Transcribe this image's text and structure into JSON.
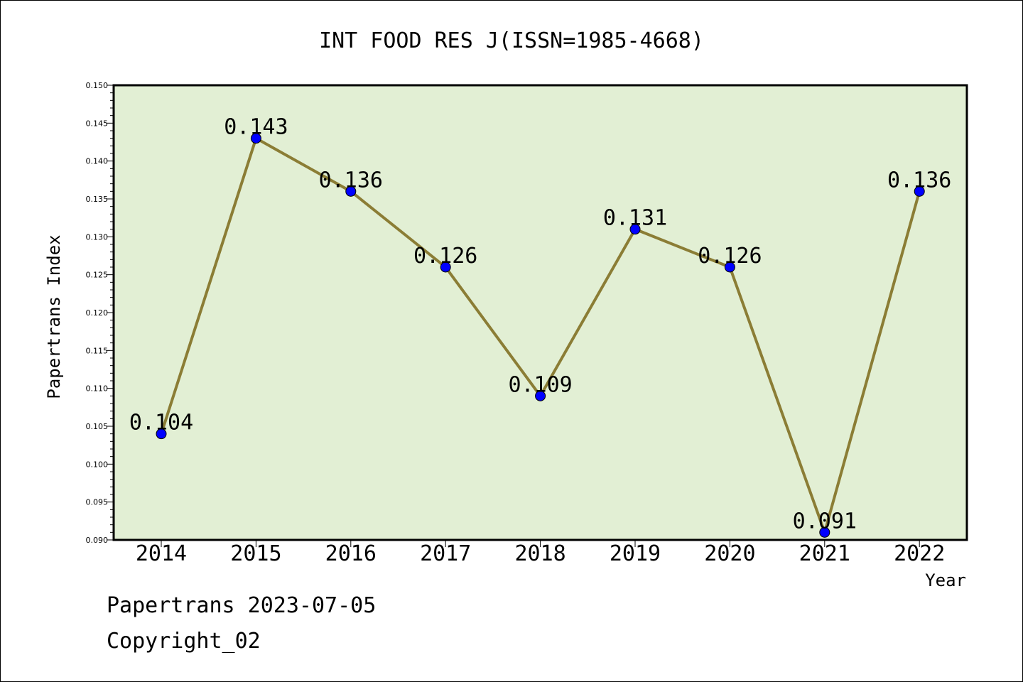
{
  "chart_data": {
    "type": "line",
    "title": "INT FOOD RES J(ISSN=1985-4668)",
    "xlabel": "Year",
    "ylabel": "Papertrans Index",
    "categories": [
      "2014",
      "2015",
      "2016",
      "2017",
      "2018",
      "2019",
      "2020",
      "2021",
      "2022"
    ],
    "values": [
      0.104,
      0.143,
      0.136,
      0.126,
      0.109,
      0.131,
      0.126,
      0.091,
      0.136
    ],
    "data_labels": [
      "0.104",
      "0.143",
      "0.136",
      "0.126",
      "0.109",
      "0.131",
      "0.126",
      "0.091",
      "0.136"
    ],
    "ylim": [
      0.09,
      0.15
    ],
    "yticks": [
      "0.090",
      "0.095",
      "0.100",
      "0.105",
      "0.110",
      "0.115",
      "0.120",
      "0.125",
      "0.130",
      "0.135",
      "0.140",
      "0.145",
      "0.150"
    ],
    "grid": false,
    "colors": {
      "plot_background": "#e2efd4",
      "line": "#8b7d35",
      "marker": "#0000ff"
    }
  },
  "footer": {
    "line1": "Papertrans 2023-07-05",
    "line2": "Copyright_02"
  }
}
